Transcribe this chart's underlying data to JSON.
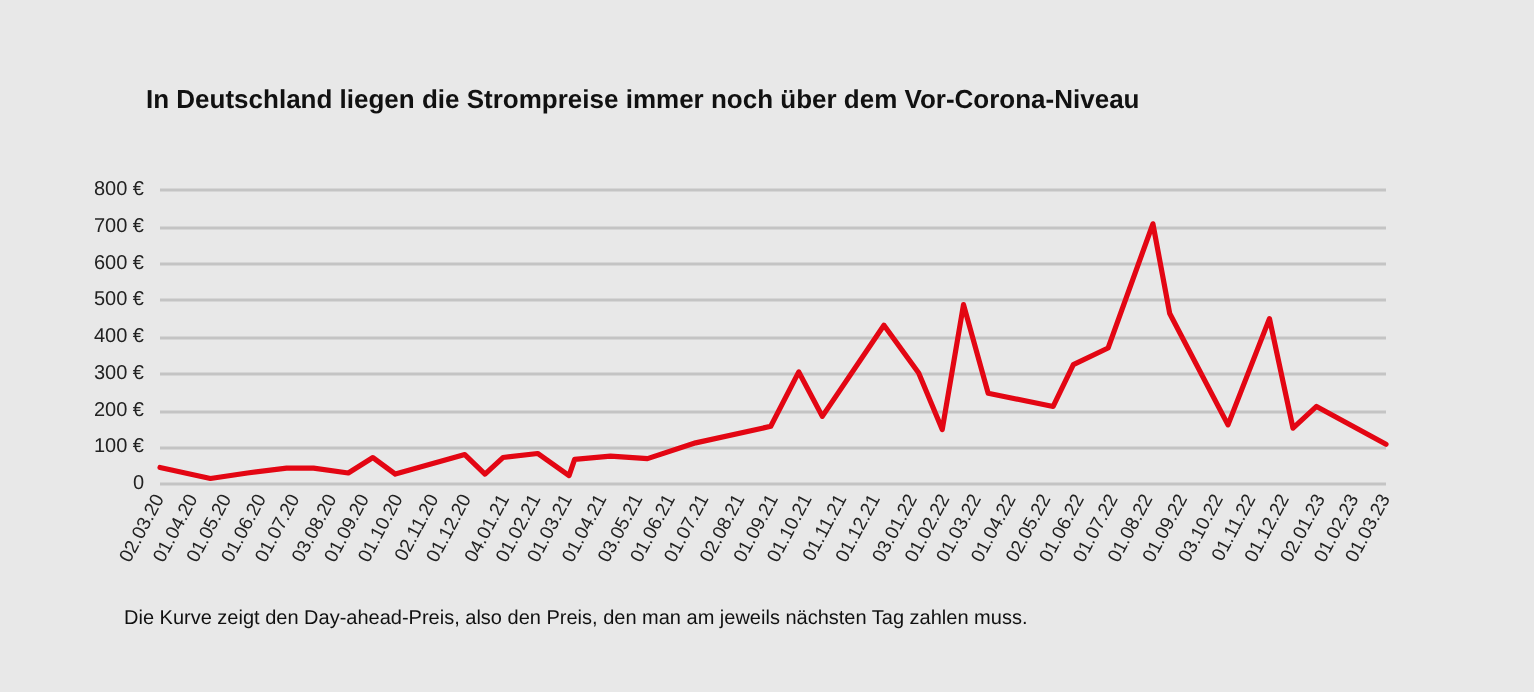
{
  "chart_data": {
    "type": "line",
    "title": "In Deutschland liegen die Strompreise immer noch über dem Vor-Corona-Niveau",
    "annotations": [
      "Die Kurve zeigt den Day-ahead-Preis, also den Preis, den man am jeweils nächsten Tag zahlen muss."
    ],
    "x": [
      "2020-03-02",
      "2020-04-16",
      "2020-05-19",
      "2020-06-23",
      "2020-07-17",
      "2020-08-17",
      "2020-09-08",
      "2020-09-28",
      "2020-11-29",
      "2020-12-17",
      "2021-01-02",
      "2021-02-02",
      "2021-03-02",
      "2021-03-07",
      "2021-04-08",
      "2021-05-11",
      "2021-06-23",
      "2021-08-29",
      "2021-09-23",
      "2021-10-14",
      "2021-12-08",
      "2022-01-08",
      "2022-01-29",
      "2022-02-17",
      "2022-03-11",
      "2022-05-08",
      "2022-05-26",
      "2022-06-26",
      "2022-08-05",
      "2022-08-20",
      "2022-10-11",
      "2022-11-17",
      "2022-12-08",
      "2022-12-29",
      "2023-03-01"
    ],
    "series": [
      {
        "color": "#e30613",
        "values": [
          45,
          15,
          30,
          43,
          43,
          30,
          72,
          27,
          80,
          27,
          72,
          83,
          23,
          67,
          76,
          69,
          112,
          157,
          305,
          184,
          432,
          302,
          148,
          488,
          247,
          211,
          325,
          370,
          708,
          464,
          161,
          450,
          152,
          211,
          108
        ]
      }
    ],
    "xlim": [
      "2020-03-02",
      "2023-03-01"
    ],
    "xticks": [
      {
        "value": "2020-03-02",
        "label": "02.03.20"
      },
      {
        "value": "2020-04-01",
        "label": "01.04.20"
      },
      {
        "value": "2020-05-01",
        "label": "01.05.20"
      },
      {
        "value": "2020-06-01",
        "label": "01.06.20"
      },
      {
        "value": "2020-07-01",
        "label": "01.07.20"
      },
      {
        "value": "2020-08-03",
        "label": "03.08.20"
      },
      {
        "value": "2020-09-01",
        "label": "01.09.20"
      },
      {
        "value": "2020-10-01",
        "label": "01.10.20"
      },
      {
        "value": "2020-11-02",
        "label": "02.11.20"
      },
      {
        "value": "2020-12-01",
        "label": "01.12.20"
      },
      {
        "value": "2021-01-04",
        "label": "04.01.21"
      },
      {
        "value": "2021-02-01",
        "label": "01.02.21"
      },
      {
        "value": "2021-03-01",
        "label": "01.03.21"
      },
      {
        "value": "2021-04-01",
        "label": "01.04.21"
      },
      {
        "value": "2021-05-03",
        "label": "03.05.21"
      },
      {
        "value": "2021-06-01",
        "label": "01.06.21"
      },
      {
        "value": "2021-07-01",
        "label": "01.07.21"
      },
      {
        "value": "2021-08-02",
        "label": "02.08.21"
      },
      {
        "value": "2021-09-01",
        "label": "01.09.21"
      },
      {
        "value": "2021-10-01",
        "label": "01.10.21"
      },
      {
        "value": "2021-11-01",
        "label": "01.11.21"
      },
      {
        "value": "2021-12-01",
        "label": "01.12.21"
      },
      {
        "value": "2022-01-03",
        "label": "03.01.22"
      },
      {
        "value": "2022-02-01",
        "label": "01.02.22"
      },
      {
        "value": "2022-03-01",
        "label": "01.03.22"
      },
      {
        "value": "2022-04-01",
        "label": "01.04.22"
      },
      {
        "value": "2022-05-02",
        "label": "02.05.22"
      },
      {
        "value": "2022-06-01",
        "label": "01.06.22"
      },
      {
        "value": "2022-07-01",
        "label": "01.07.22"
      },
      {
        "value": "2022-08-01",
        "label": "01.08.22"
      },
      {
        "value": "2022-09-01",
        "label": "01.09.22"
      },
      {
        "value": "2022-10-03",
        "label": "03.10.22"
      },
      {
        "value": "2022-11-01",
        "label": "01.11.22"
      },
      {
        "value": "2022-12-01",
        "label": "01.12.22"
      },
      {
        "value": "2023-01-02",
        "label": "02.01.23"
      },
      {
        "value": "2023-02-01",
        "label": "01.02.23"
      },
      {
        "value": "2023-03-01",
        "label": "01.03.23"
      }
    ],
    "ylim": [
      0,
      800
    ],
    "yticks": [
      0,
      {
        "value": 100,
        "label": "100 €"
      },
      {
        "value": 200,
        "label": "200 €"
      },
      {
        "value": 300,
        "label": "300 €"
      },
      {
        "value": 400,
        "label": "400 €"
      },
      {
        "value": 500,
        "label": "500 €"
      },
      {
        "value": 600,
        "label": "600 €"
      },
      {
        "value": 700,
        "label": "700 €"
      },
      {
        "value": 800,
        "label": "800 €"
      }
    ],
    "grid": "y",
    "marker": "none",
    "line_style": "solid"
  }
}
